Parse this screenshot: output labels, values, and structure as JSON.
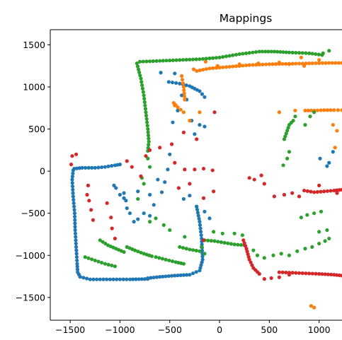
{
  "chart_data": {
    "type": "scatter",
    "title": "Mappings",
    "xlabel": "",
    "ylabel": "",
    "xlim": [
      -1700,
      1230
    ],
    "ylim": [
      -1770,
      1680
    ],
    "xticks": [
      -1500,
      -1000,
      -500,
      0,
      500,
      1000
    ],
    "yticks": [
      -1500,
      -1000,
      -500,
      0,
      500,
      1000,
      1500
    ],
    "xtick_labels": [
      "−1500",
      "−1000",
      "−500",
      "0",
      "500",
      "1000"
    ],
    "ytick_labels": [
      "−1500",
      "−1000",
      "−500",
      "0",
      "500",
      "1000",
      "1500"
    ],
    "grid": false,
    "series": [
      {
        "color": "#1f77b4",
        "polylines": [
          [
            [
              -1460,
              30
            ],
            [
              -1380,
              40
            ],
            [
              -1250,
              40
            ],
            [
              -1150,
              50
            ],
            [
              -1050,
              70
            ],
            [
              -1000,
              80
            ]
          ],
          [
            [
              -1470,
              10
            ],
            [
              -1480,
              -100
            ],
            [
              -1470,
              -300
            ],
            [
              -1455,
              -500
            ],
            [
              -1450,
              -700
            ],
            [
              -1440,
              -900
            ],
            [
              -1430,
              -1100
            ],
            [
              -1425,
              -1200
            ],
            [
              -1400,
              -1255
            ]
          ],
          [
            [
              -1400,
              -1255
            ],
            [
              -1300,
              -1285
            ],
            [
              -1100,
              -1285
            ],
            [
              -900,
              -1285
            ],
            [
              -720,
              -1280
            ]
          ],
          [
            [
              -720,
              -1270
            ],
            [
              -600,
              -1255
            ],
            [
              -450,
              -1240
            ],
            [
              -300,
              -1230
            ],
            [
              -200,
              -1180
            ],
            [
              -170,
              -1050
            ],
            [
              -180,
              -800
            ],
            [
              -200,
              -600
            ],
            [
              -230,
              -420
            ]
          ],
          [
            [
              -510,
              1060
            ],
            [
              -400,
              1040
            ],
            [
              -300,
              1010
            ],
            [
              -200,
              950
            ],
            [
              -150,
              880
            ]
          ]
        ],
        "points": [
          [
            -1060,
            -170
          ],
          [
            -960,
            -260
          ],
          [
            -940,
            -350
          ],
          [
            -930,
            -440
          ],
          [
            -900,
            -500
          ],
          [
            -860,
            -600
          ],
          [
            -820,
            -570
          ],
          [
            -760,
            -500
          ],
          [
            -700,
            -530
          ],
          [
            -660,
            -400
          ],
          [
            -580,
            -250
          ],
          [
            -550,
            -130
          ],
          [
            -520,
            20
          ],
          [
            -500,
            200
          ],
          [
            -470,
            580
          ],
          [
            -420,
            720
          ],
          [
            -380,
            900
          ],
          [
            -330,
            850
          ],
          [
            -280,
            600
          ],
          [
            -250,
            440
          ],
          [
            -200,
            550
          ],
          [
            -150,
            530
          ],
          [
            -590,
            1170
          ],
          [
            -450,
            1160
          ],
          [
            -360,
            -330
          ],
          [
            -300,
            -290
          ],
          [
            -230,
            -420
          ],
          [
            -150,
            -480
          ],
          [
            -100,
            -560
          ],
          [
            -1040,
            -200
          ],
          [
            -1000,
            -280
          ],
          [
            -960,
            -320
          ],
          [
            -820,
            -240
          ],
          [
            -700,
            -280
          ],
          [
            -620,
            -100
          ],
          [
            1010,
            150
          ],
          [
            1100,
            100
          ],
          [
            1140,
            230
          ],
          [
            1080,
            60
          ]
        ]
      },
      {
        "color": "#ff7f0e",
        "polylines": [
          [
            [
              -230,
              1190
            ],
            [
              -100,
              1220
            ],
            [
              100,
              1240
            ],
            [
              300,
              1260
            ],
            [
              500,
              1270
            ],
            [
              700,
              1275
            ],
            [
              900,
              1280
            ],
            [
              1100,
              1285
            ],
            [
              1230,
              1285
            ]
          ],
          [
            [
              -380,
              1130
            ],
            [
              -360,
              1000
            ],
            [
              -350,
              850
            ]
          ],
          [
            [
              860,
              720
            ],
            [
              950,
              720
            ],
            [
              1050,
              725
            ],
            [
              1150,
              725
            ],
            [
              1230,
              725
            ]
          ],
          [
            [
              -460,
              810
            ],
            [
              -420,
              760
            ],
            [
              -360,
              700
            ]
          ]
        ],
        "points": [
          [
            -140,
            1300
          ],
          [
            -20,
            1250
          ],
          [
            200,
            1270
          ],
          [
            390,
            1280
          ],
          [
            600,
            1290
          ],
          [
            820,
            1350
          ],
          [
            1000,
            1320
          ],
          [
            -450,
            780
          ],
          [
            -300,
            600
          ],
          [
            -200,
            700
          ],
          [
            600,
            700
          ],
          [
            760,
            720
          ],
          [
            1140,
            550
          ],
          [
            1160,
            280
          ],
          [
            1180,
            480
          ],
          [
            920,
            -1600
          ],
          [
            950,
            -1620
          ],
          [
            -260,
            1210
          ],
          [
            700,
            1270
          ],
          [
            850,
            1250
          ]
        ]
      },
      {
        "color": "#2ca02c",
        "polylines": [
          [
            [
              -830,
              1280
            ],
            [
              -790,
              1100
            ],
            [
              -760,
              900
            ],
            [
              -740,
              700
            ],
            [
              -720,
              500
            ],
            [
              -710,
              350
            ],
            [
              -720,
              240
            ]
          ],
          [
            [
              -800,
              1300
            ],
            [
              -600,
              1310
            ],
            [
              -400,
              1320
            ],
            [
              -200,
              1330
            ],
            [
              0,
              1350
            ],
            [
              200,
              1390
            ],
            [
              400,
              1420
            ],
            [
              550,
              1420
            ],
            [
              700,
              1410
            ],
            [
              900,
              1400
            ],
            [
              1030,
              1380
            ]
          ],
          [
            [
              650,
              380
            ],
            [
              700,
              550
            ],
            [
              740,
              600
            ],
            [
              760,
              650
            ]
          ],
          [
            [
              -1200,
              -820
            ],
            [
              -1120,
              -880
            ],
            [
              -1040,
              -920
            ],
            [
              -960,
              -960
            ]
          ],
          [
            [
              -930,
              -900
            ],
            [
              -850,
              -940
            ],
            [
              -760,
              -980
            ],
            [
              -680,
              -1010
            ]
          ],
          [
            [
              -1350,
              -1020
            ],
            [
              -1250,
              -1060
            ],
            [
              -1150,
              -1100
            ],
            [
              -1050,
              -1130
            ]
          ],
          [
            [
              -640,
              -1020
            ],
            [
              -540,
              -1050
            ],
            [
              -440,
              -1080
            ],
            [
              -360,
              -1100
            ]
          ],
          [
            [
              -150,
              -820
            ],
            [
              -50,
              -830
            ],
            [
              50,
              -850
            ],
            [
              150,
              -870
            ],
            [
              250,
              -880
            ]
          ],
          [
            [
              -400,
              -900
            ],
            [
              -300,
              -930
            ],
            [
              -200,
              -950
            ]
          ]
        ],
        "points": [
          [
            -720,
            150
          ],
          [
            -700,
            50
          ],
          [
            -780,
            -80
          ],
          [
            -760,
            -150
          ],
          [
            -820,
            -330
          ],
          [
            -700,
            -600
          ],
          [
            -640,
            -560
          ],
          [
            -560,
            -640
          ],
          [
            -500,
            -700
          ],
          [
            -350,
            -780
          ],
          [
            -180,
            -900
          ],
          [
            -150,
            -980
          ],
          [
            -60,
            -720
          ],
          [
            30,
            -740
          ],
          [
            150,
            -740
          ],
          [
            230,
            -760
          ],
          [
            340,
            -940
          ],
          [
            380,
            -1000
          ],
          [
            450,
            -1030
          ],
          [
            540,
            -1000
          ],
          [
            620,
            -980
          ],
          [
            700,
            -1000
          ],
          [
            780,
            -950
          ],
          [
            860,
            -920
          ],
          [
            930,
            -900
          ],
          [
            1000,
            -860
          ],
          [
            1060,
            -830
          ],
          [
            1100,
            -800
          ],
          [
            820,
            -550
          ],
          [
            880,
            -520
          ],
          [
            950,
            -500
          ],
          [
            1020,
            -480
          ],
          [
            640,
            70
          ],
          [
            680,
            150
          ],
          [
            700,
            230
          ],
          [
            860,
            550
          ],
          [
            910,
            650
          ],
          [
            950,
            700
          ],
          [
            1040,
            1400
          ],
          [
            1100,
            1430
          ],
          [
            1080,
            -700
          ],
          [
            1000,
            -720
          ]
        ]
      },
      {
        "color": "#d62728",
        "polylines": [
          [
            [
              850,
              -230
            ],
            [
              950,
              -250
            ],
            [
              1050,
              -240
            ],
            [
              1150,
              -230
            ],
            [
              1230,
              -220
            ]
          ],
          [
            [
              240,
              -820
            ],
            [
              270,
              -920
            ],
            [
              300,
              -1050
            ],
            [
              340,
              -1150
            ],
            [
              400,
              -1220
            ]
          ],
          [
            [
              600,
              -1200
            ],
            [
              800,
              -1210
            ],
            [
              1000,
              -1220
            ],
            [
              1150,
              -1230
            ],
            [
              1230,
              -1240
            ]
          ]
        ],
        "points": [
          [
            -1490,
            80
          ],
          [
            -1480,
            180
          ],
          [
            -1440,
            200
          ],
          [
            -1320,
            -170
          ],
          [
            -1330,
            -280
          ],
          [
            -1310,
            -350
          ],
          [
            -1290,
            -460
          ],
          [
            -1270,
            -580
          ],
          [
            -1130,
            -380
          ],
          [
            -1090,
            -550
          ],
          [
            -1080,
            -680
          ],
          [
            -1050,
            -800
          ],
          [
            -930,
            120
          ],
          [
            -880,
            50
          ],
          [
            -790,
            -60
          ],
          [
            -740,
            180
          ],
          [
            -700,
            250
          ],
          [
            -600,
            280
          ],
          [
            -480,
            320
          ],
          [
            -450,
            100
          ],
          [
            -350,
            20
          ],
          [
            -250,
            20
          ],
          [
            -160,
            30
          ],
          [
            -70,
            10
          ],
          [
            -60,
            -240
          ],
          [
            -160,
            -320
          ],
          [
            -300,
            -150
          ],
          [
            -410,
            -200
          ],
          [
            300,
            -80
          ],
          [
            350,
            -100
          ],
          [
            420,
            -50
          ],
          [
            450,
            -150
          ],
          [
            550,
            -300
          ],
          [
            650,
            -280
          ],
          [
            730,
            -260
          ],
          [
            800,
            -300
          ],
          [
            450,
            -1280
          ],
          [
            520,
            -1270
          ],
          [
            600,
            -1260
          ],
          [
            700,
            -1230
          ],
          [
            -50,
            700
          ],
          [
            -160,
            -820
          ],
          [
            -230,
            380
          ],
          [
            -360,
            460
          ],
          [
            1000,
            -170
          ],
          [
            1180,
            -260
          ]
        ]
      }
    ]
  }
}
